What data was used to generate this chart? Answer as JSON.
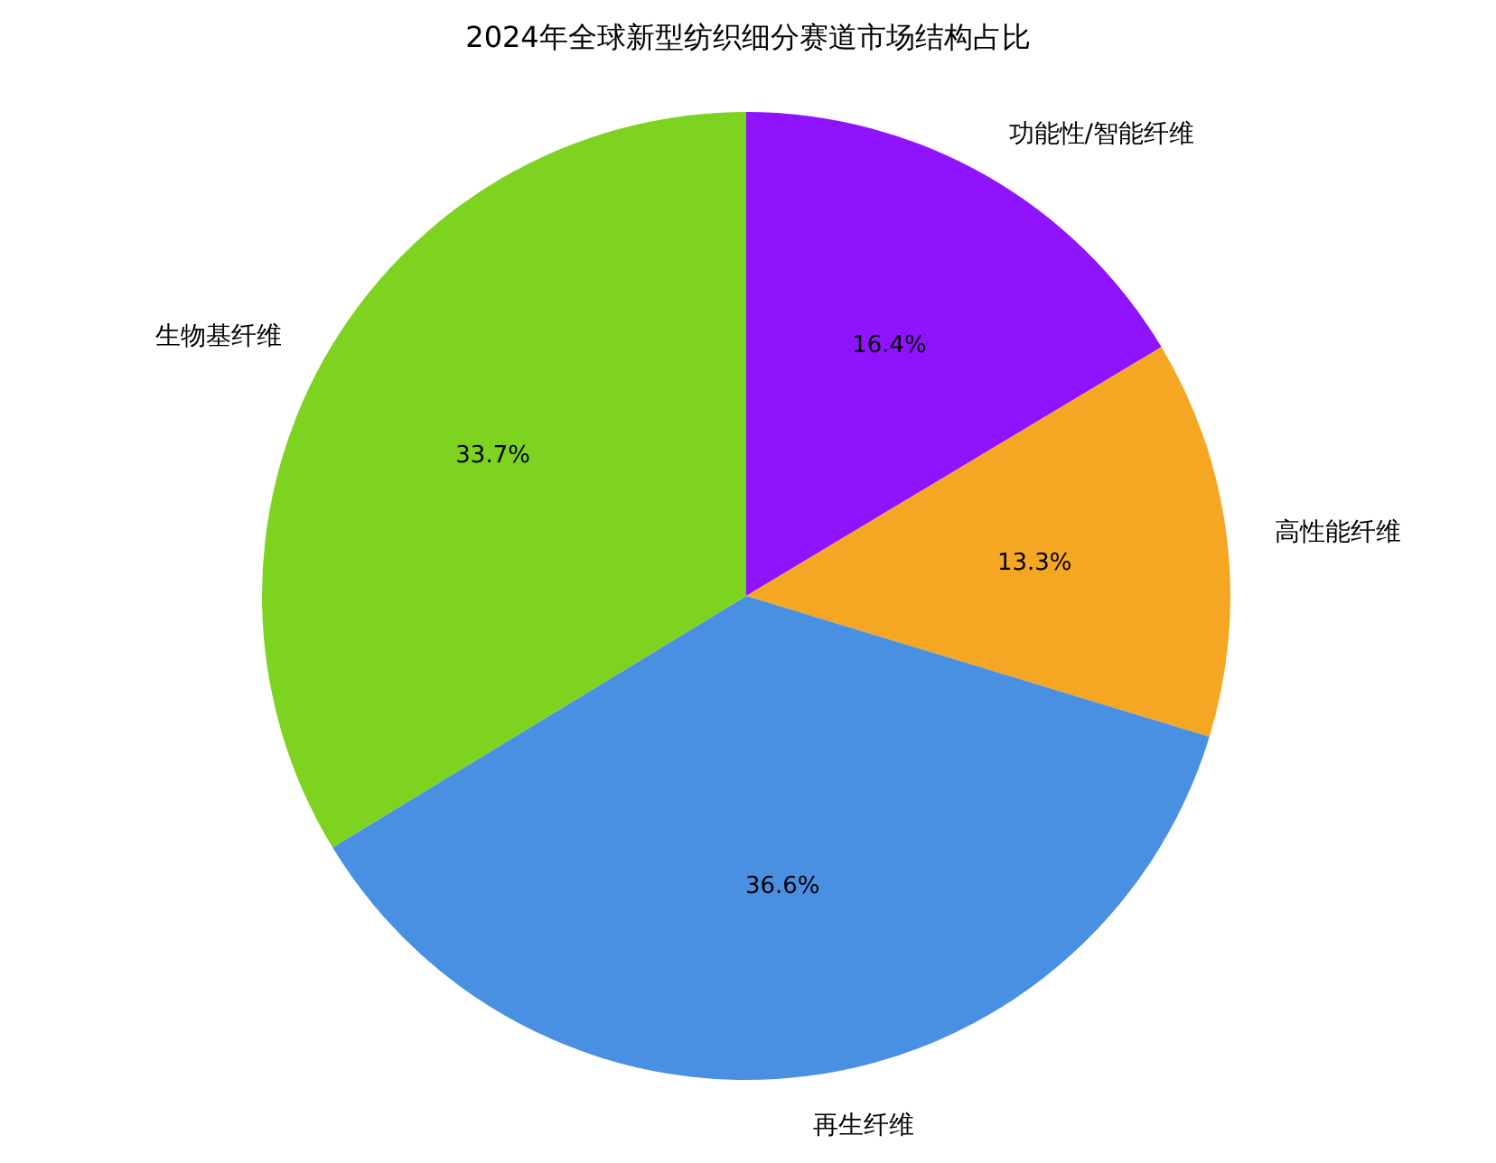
{
  "chart_data": {
    "type": "pie",
    "title": "2024年全球新型纺织细分赛道市场结构占比",
    "categories": [
      "功能性/智能纤维",
      "高性能纤维",
      "再生纤维",
      "生物基纤维"
    ],
    "values": [
      16.4,
      13.3,
      36.6,
      33.7
    ],
    "colors": [
      "#9013fe",
      "#f5a623",
      "#4a90e2",
      "#7ed321"
    ],
    "value_labels": [
      "16.4%",
      "13.3%",
      "36.6%",
      "33.7%"
    ]
  }
}
